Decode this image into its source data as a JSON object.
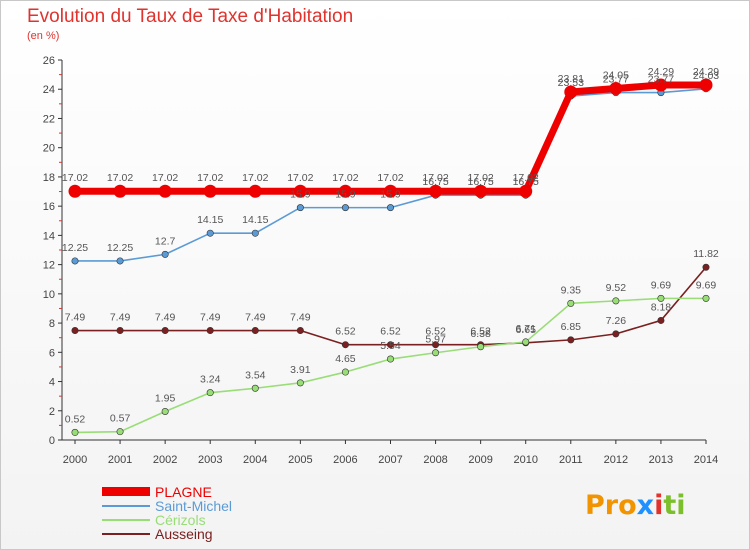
{
  "title": "Evolution du Taux de Taxe d'Habitation",
  "subtitle": "(en %)",
  "logo": "Proxiti",
  "chart_data": {
    "type": "line",
    "title": "Evolution du Taux de Taxe d'Habitation",
    "ylabel": "(en %)",
    "x": [
      "2000",
      "2001",
      "2002",
      "2003",
      "2004",
      "2005",
      "2006",
      "2007",
      "2008",
      "2009",
      "2010",
      "2011",
      "2012",
      "2013",
      "2014"
    ],
    "ylim": [
      0,
      26
    ],
    "yticks": [
      0,
      2,
      4,
      6,
      8,
      10,
      12,
      14,
      16,
      18,
      20,
      22,
      24,
      26
    ],
    "grid": false,
    "legend": "bottom-left",
    "series": [
      {
        "name": "PLAGNE",
        "color": "#ee0000",
        "values": [
          17.02,
          17.02,
          17.02,
          17.02,
          17.02,
          17.02,
          17.02,
          17.02,
          17.02,
          17.02,
          17.02,
          23.81,
          24.05,
          24.29,
          24.29
        ]
      },
      {
        "name": "Saint-Michel",
        "color": "#5b9bd5",
        "values": [
          12.25,
          12.25,
          12.7,
          14.15,
          14.15,
          15.9,
          15.9,
          15.9,
          16.75,
          16.75,
          16.75,
          23.53,
          23.77,
          23.77,
          24.03
        ]
      },
      {
        "name": "Cérizols",
        "color": "#99dd77",
        "values": [
          0.52,
          0.57,
          1.95,
          3.24,
          3.54,
          3.91,
          4.65,
          5.54,
          5.97,
          6.38,
          6.71,
          9.35,
          9.52,
          9.69,
          9.69
        ]
      },
      {
        "name": "Ausseing",
        "color": "#7b2020",
        "values": [
          7.49,
          7.49,
          7.49,
          7.49,
          7.49,
          7.49,
          6.52,
          6.52,
          6.52,
          6.52,
          6.65,
          6.85,
          7.26,
          8.18,
          11.82
        ]
      }
    ],
    "labels": [
      [
        "17.02",
        "17.02",
        "17.02",
        "17.02",
        "17.02",
        "17.02",
        "17.02",
        "17.02",
        "17.02",
        "17.02",
        "17.02",
        "23.81",
        "24.05",
        "24.29",
        "24.29"
      ],
      [
        "12.25",
        "12.25",
        "12.7",
        "14.15",
        "14.15",
        "15.9",
        "15.9",
        "15.9",
        "16.75",
        "16.75",
        "16.75",
        "23.53",
        "23.77",
        "23.77",
        "24.03"
      ],
      [
        "0.52",
        "0.57",
        "1.95",
        "3.24",
        "3.54",
        "3.91",
        "4.65",
        "5.54",
        "5.97",
        "6.38",
        "6.71",
        "9.35",
        "9.52",
        "9.69",
        "9.69"
      ],
      [
        "7.49",
        "7.49",
        "7.49",
        "7.49",
        "7.49",
        "7.49",
        "6.52",
        "6.52",
        "6.52",
        "6.52",
        "6.65",
        "6.85",
        "7.26",
        "8.18",
        "11.82"
      ]
    ]
  }
}
